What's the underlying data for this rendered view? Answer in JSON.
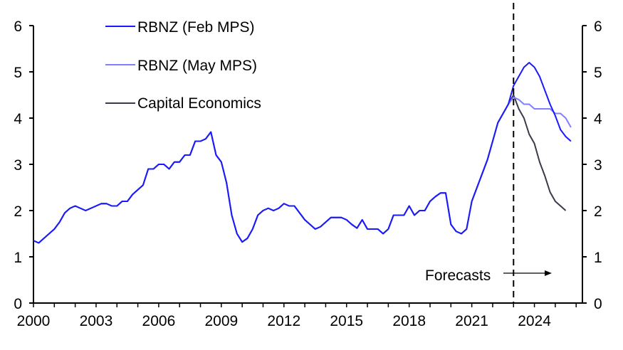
{
  "chart_data": {
    "type": "line",
    "title": "",
    "xlabel": "",
    "ylabel": "",
    "xlim": [
      2000,
      2026.3
    ],
    "ylim": [
      0,
      6
    ],
    "x_ticks": [
      "2000",
      "2003",
      "2006",
      "2009",
      "2012",
      "2015",
      "2018",
      "2021",
      "2024"
    ],
    "y_ticks_left": [
      "0",
      "1",
      "2",
      "3",
      "4",
      "5",
      "6"
    ],
    "y_ticks_right": [
      "0",
      "1",
      "2",
      "3",
      "4",
      "5",
      "6"
    ],
    "grid": false,
    "legend_position": "top-left",
    "forecast_start": 2023.0,
    "annotation": "Forecasts",
    "history_start": 2000.0,
    "history_step": 0.25,
    "history": [
      1.35,
      1.3,
      1.4,
      1.5,
      1.6,
      1.75,
      1.95,
      2.05,
      2.1,
      2.05,
      2.0,
      2.05,
      2.1,
      2.15,
      2.15,
      2.1,
      2.1,
      2.2,
      2.2,
      2.35,
      2.45,
      2.55,
      2.9,
      2.9,
      3.0,
      3.0,
      2.9,
      3.05,
      3.05,
      3.2,
      3.2,
      3.5,
      3.5,
      3.55,
      3.7,
      3.2,
      3.05,
      2.6,
      1.9,
      1.5,
      1.32,
      1.4,
      1.6,
      1.9,
      2.0,
      2.05,
      2.0,
      2.05,
      2.15,
      2.1,
      2.1,
      1.95,
      1.8,
      1.7,
      1.6,
      1.65,
      1.75,
      1.85,
      1.85,
      1.85,
      1.8,
      1.7,
      1.62,
      1.8,
      1.6,
      1.6,
      1.6,
      1.5,
      1.6,
      1.9,
      1.9,
      1.9,
      2.1,
      1.9,
      2.0,
      2.0,
      2.2,
      2.3,
      2.38,
      2.38,
      1.7,
      1.55,
      1.5,
      1.6,
      2.2,
      2.5,
      2.8,
      3.1,
      3.5,
      3.9,
      4.3
    ],
    "series": [
      {
        "name": "RBNZ (Feb MPS)",
        "color": "#1a1aff",
        "start": 2022.75,
        "values": [
          4.3,
          4.7,
          4.9,
          5.1,
          5.2,
          5.1,
          4.9,
          4.6,
          4.3,
          4.05,
          3.75,
          3.6,
          3.5
        ]
      },
      {
        "name": "RBNZ (May MPS)",
        "color": "#7f7fff",
        "start": 2022.75,
        "values": [
          4.3,
          4.45,
          4.4,
          4.3,
          4.3,
          4.2,
          4.2,
          4.2,
          4.2,
          4.1,
          4.1,
          4.0,
          3.8
        ]
      },
      {
        "name": "Capital Economics",
        "color": "#3a3a4a",
        "start": 2022.75,
        "values": [
          4.3,
          4.5,
          4.2,
          4.0,
          3.65,
          3.45,
          3.05,
          2.75,
          2.4,
          2.2,
          2.1,
          2.0
        ]
      }
    ]
  }
}
